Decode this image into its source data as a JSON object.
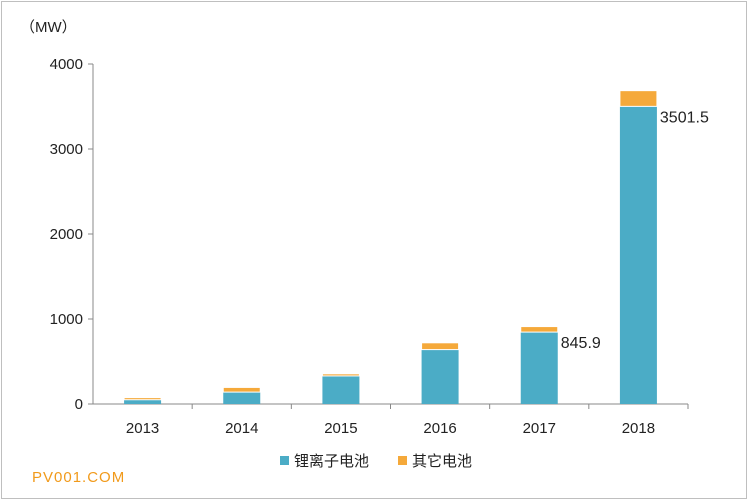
{
  "chart_data": {
    "type": "bar",
    "stacked": true,
    "unit_label": "（MW）",
    "categories": [
      "2013",
      "2014",
      "2015",
      "2016",
      "2017",
      "2018"
    ],
    "series": [
      {
        "name": "锂离子电池",
        "color": "#4bacc6",
        "values": [
          50,
          140,
          330,
          640,
          845.9,
          3501.5
        ]
      },
      {
        "name": "其它电池",
        "color": "#f5a93a",
        "values": [
          25,
          55,
          25,
          80,
          65,
          185
        ]
      }
    ],
    "data_labels": [
      {
        "category": "2017",
        "text": "845.9"
      },
      {
        "category": "2018",
        "text": "3501.5"
      }
    ],
    "ylim": [
      0,
      4000
    ],
    "yticks": [
      0,
      1000,
      2000,
      3000,
      4000
    ],
    "grid": false,
    "legend_position": "bottom"
  },
  "watermark": "PV001.COM"
}
